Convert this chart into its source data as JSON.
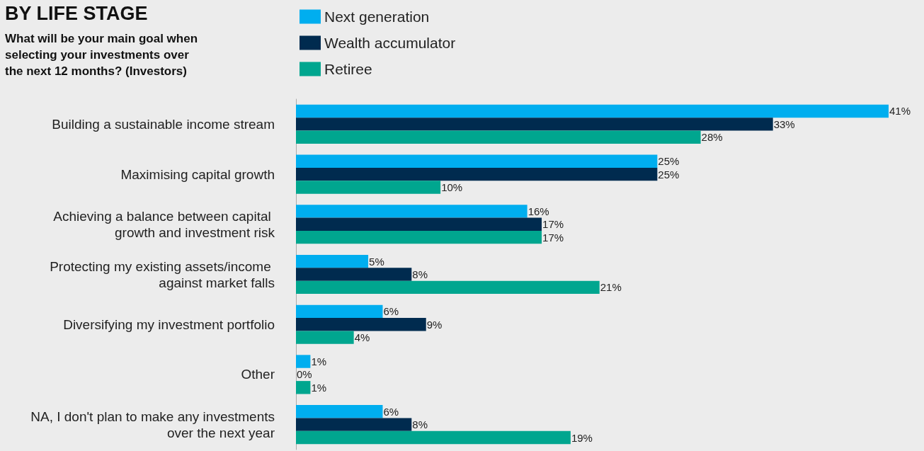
{
  "chart_data": {
    "type": "bar",
    "orientation": "horizontal",
    "title": "BY LIFE STAGE",
    "subtitle": "What will be your main goal when selecting your investments over the next 12 months? (Investors)",
    "categories": [
      "Building a sustainable income stream",
      "Maximising capital growth",
      "Achieving a balance between capital growth and investment risk",
      "Protecting my existing assets/income against market falls",
      "Diversifying my investment portfolio",
      "Other",
      "NA, I don't plan to make any investments over the next year"
    ],
    "series": [
      {
        "name": "Next generation",
        "color": "#00aeef",
        "values": [
          41,
          25,
          16,
          5,
          6,
          1,
          6
        ],
        "value_labels": [
          "41%",
          "25%",
          "16%",
          "5%",
          "6%",
          "1%",
          "6%"
        ]
      },
      {
        "name": "Wealth accumulator",
        "color": "#002b4f",
        "values": [
          33,
          25,
          17,
          8,
          9,
          0,
          8
        ],
        "value_labels": [
          "33%",
          "25%",
          "17%",
          "8%",
          "9%",
          "0%",
          "8%"
        ]
      },
      {
        "name": "Retiree",
        "color": "#00a68f",
        "values": [
          28,
          10,
          17,
          21,
          4,
          1,
          19
        ],
        "value_labels": [
          "28%",
          "10%",
          "17%",
          "21%",
          "4%",
          "1%",
          "19%"
        ]
      }
    ],
    "legend": "top left",
    "grid": false
  }
}
